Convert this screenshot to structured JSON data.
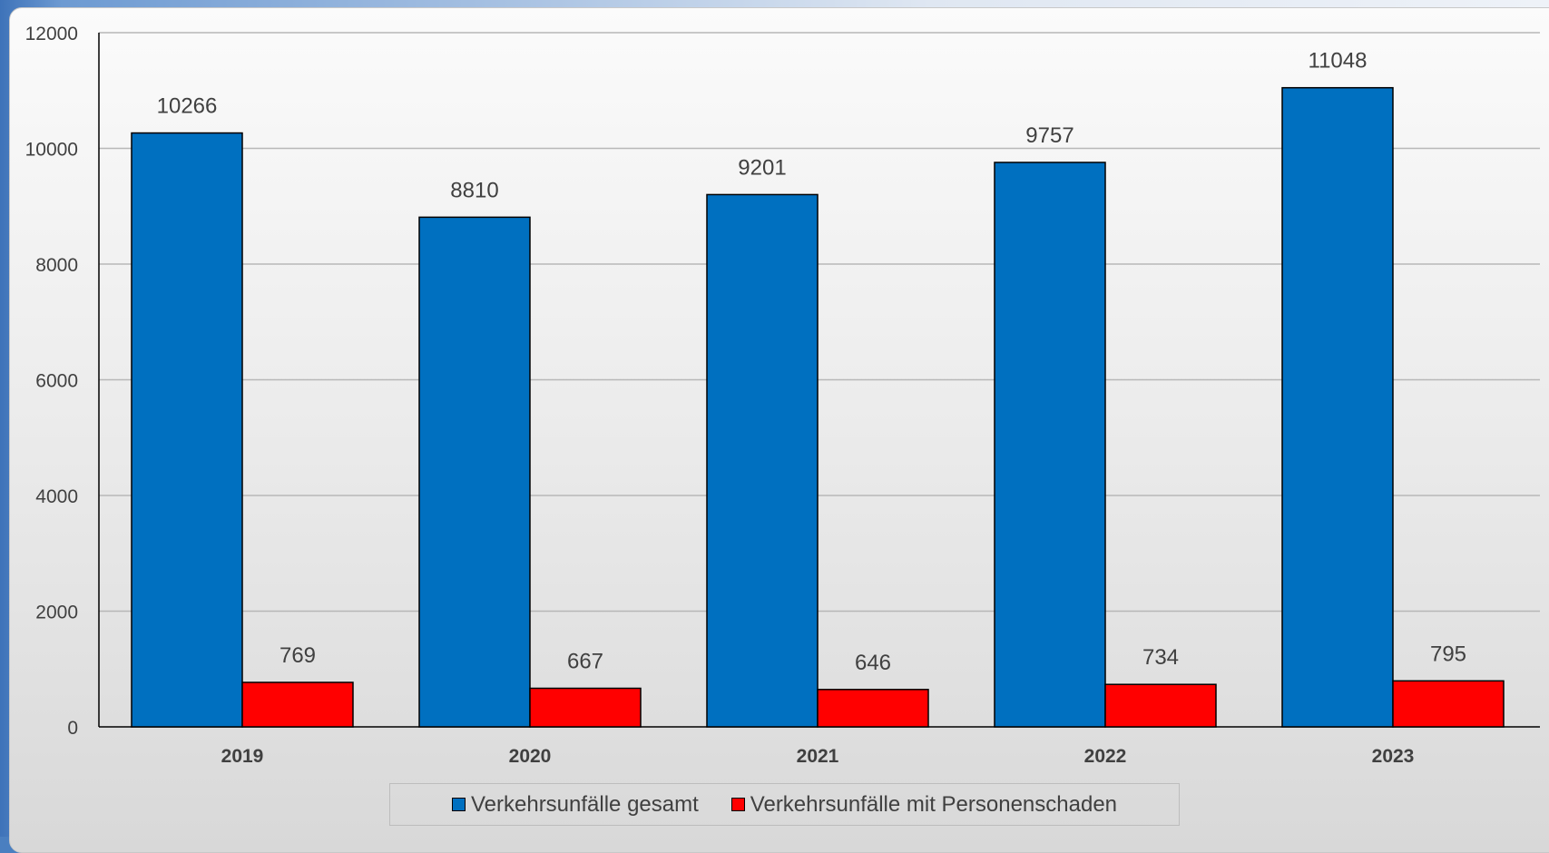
{
  "chart_data": {
    "type": "bar",
    "categories": [
      "2019",
      "2020",
      "2021",
      "2022",
      "2023"
    ],
    "series": [
      {
        "name": "Verkehrsunfälle gesamt",
        "color": "#0070c0",
        "values": [
          10266,
          8810,
          9201,
          9757,
          11048
        ]
      },
      {
        "name": "Verkehrsunfälle mit Personenschaden",
        "color": "#ff0000",
        "values": [
          769,
          667,
          646,
          734,
          795
        ]
      }
    ],
    "ylim": [
      0,
      12000
    ],
    "yticks": [
      0,
      2000,
      4000,
      6000,
      8000,
      10000,
      12000
    ],
    "grid": true,
    "legend_position": "bottom",
    "title": "",
    "xlabel": "",
    "ylabel": ""
  }
}
